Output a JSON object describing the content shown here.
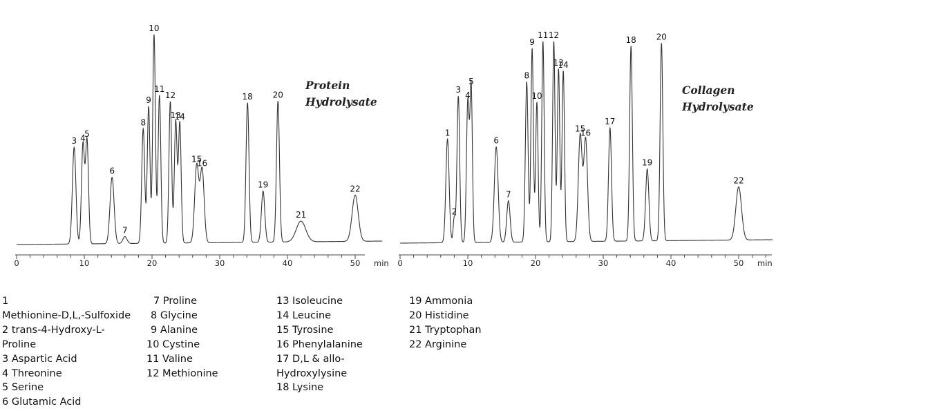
{
  "chart_data": [
    {
      "type": "line",
      "title": "Protein Hydrolysate",
      "title_lines": [
        "Protein",
        "Hydrolysate"
      ],
      "x_unit": "min",
      "xlim": [
        0,
        54
      ],
      "x_ticks": [
        0,
        10,
        20,
        30,
        40,
        50
      ],
      "tick_labels": [
        "0",
        "10",
        "20",
        "30",
        "40",
        "50"
      ],
      "grid": false,
      "peaks": [
        {
          "label": "3",
          "rt": 8.5,
          "height": 140,
          "width": 0.26
        },
        {
          "label": "4",
          "rt": 9.8,
          "height": 144,
          "width": 0.22
        },
        {
          "label": "5",
          "rt": 10.4,
          "height": 150,
          "width": 0.22
        },
        {
          "label": "6",
          "rt": 14.1,
          "height": 96,
          "width": 0.3
        },
        {
          "label": "7",
          "rt": 16.0,
          "height": 10,
          "width": 0.3
        },
        {
          "label": "8",
          "rt": 18.7,
          "height": 166,
          "width": 0.22
        },
        {
          "label": "9",
          "rt": 19.5,
          "height": 198,
          "width": 0.2
        },
        {
          "label": "10",
          "rt": 20.3,
          "height": 302,
          "width": 0.2
        },
        {
          "label": "11",
          "rt": 21.1,
          "height": 214,
          "width": 0.2
        },
        {
          "label": "12",
          "rt": 22.7,
          "height": 205,
          "width": 0.2
        },
        {
          "label": "13",
          "rt": 23.5,
          "height": 176,
          "width": 0.2
        },
        {
          "label": "14",
          "rt": 24.1,
          "height": 174,
          "width": 0.2
        },
        {
          "label": "15",
          "rt": 26.6,
          "height": 112,
          "width": 0.3
        },
        {
          "label": "16",
          "rt": 27.4,
          "height": 106,
          "width": 0.3
        },
        {
          "label": "18",
          "rt": 34.1,
          "height": 202,
          "width": 0.22
        },
        {
          "label": "19",
          "rt": 36.4,
          "height": 74,
          "width": 0.25
        },
        {
          "label": "20",
          "rt": 38.6,
          "height": 204,
          "width": 0.22
        },
        {
          "label": "21",
          "rt": 42.0,
          "height": 30,
          "width": 0.7
        },
        {
          "label": "22",
          "rt": 50.0,
          "height": 67,
          "width": 0.45
        }
      ]
    },
    {
      "type": "line",
      "title": "Collagen Hydrolysate",
      "title_lines": [
        "Collagen",
        "Hydrolysate"
      ],
      "x_unit": "min",
      "xlim": [
        0,
        55
      ],
      "x_ticks": [
        0,
        10,
        20,
        30,
        40,
        50
      ],
      "tick_labels": [
        "0",
        "10",
        "20",
        "30",
        "40",
        "50"
      ],
      "grid": false,
      "peaks": [
        {
          "label": "1",
          "rt": 7.0,
          "height": 150,
          "width": 0.24
        },
        {
          "label": "2",
          "rt": 8.0,
          "height": 36,
          "width": 0.16
        },
        {
          "label": "3",
          "rt": 8.6,
          "height": 212,
          "width": 0.2
        },
        {
          "label": "4",
          "rt": 10.0,
          "height": 204,
          "width": 0.2
        },
        {
          "label": "5",
          "rt": 10.5,
          "height": 224,
          "width": 0.18
        },
        {
          "label": "6",
          "rt": 14.2,
          "height": 138,
          "width": 0.28
        },
        {
          "label": "7",
          "rt": 16.0,
          "height": 60,
          "width": 0.25
        },
        {
          "label": "8",
          "rt": 18.7,
          "height": 232,
          "width": 0.2
        },
        {
          "label": "9",
          "rt": 19.5,
          "height": 280,
          "width": 0.18
        },
        {
          "label": "10",
          "rt": 20.2,
          "height": 202,
          "width": 0.18
        },
        {
          "label": "11",
          "rt": 21.1,
          "height": 290,
          "width": 0.18
        },
        {
          "label": "12",
          "rt": 22.7,
          "height": 290,
          "width": 0.18
        },
        {
          "label": "13",
          "rt": 23.4,
          "height": 250,
          "width": 0.18
        },
        {
          "label": "14",
          "rt": 24.1,
          "height": 247,
          "width": 0.18
        },
        {
          "label": "15",
          "rt": 26.6,
          "height": 154,
          "width": 0.28
        },
        {
          "label": "16",
          "rt": 27.4,
          "height": 148,
          "width": 0.28
        },
        {
          "label": "17",
          "rt": 31.0,
          "height": 164,
          "width": 0.22
        },
        {
          "label": "18",
          "rt": 34.1,
          "height": 282,
          "width": 0.2
        },
        {
          "label": "19",
          "rt": 36.5,
          "height": 104,
          "width": 0.24
        },
        {
          "label": "20",
          "rt": 38.6,
          "height": 286,
          "width": 0.2
        },
        {
          "label": "22",
          "rt": 50.0,
          "height": 77,
          "width": 0.42
        }
      ]
    }
  ],
  "legend": {
    "col1": [
      "1",
      "Methionine-D,L,-Sulfoxide",
      "2 trans-4-Hydroxy-L-",
      "Proline",
      "3 Aspartic Acid",
      "4 Threonine",
      "5 Serine",
      "6 Glutamic Acid"
    ],
    "col2": [
      "7 Proline",
      "8 Glycine",
      "9 Alanine",
      "10 Cystine",
      "11 Valine",
      "12 Methionine"
    ],
    "col3": [
      "13 Isoleucine",
      "14 Leucine",
      "15 Tyrosine",
      "16 Phenylalanine",
      "17 D,L & allo-",
      "Hydroxylysine",
      "18 Lysine"
    ],
    "col4": [
      "19 Ammonia",
      "20 Histidine",
      "21 Tryptophan",
      "22 Arginine"
    ]
  }
}
